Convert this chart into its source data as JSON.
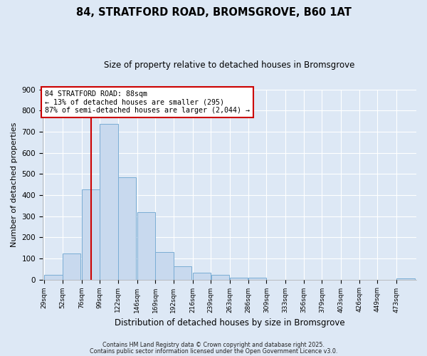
{
  "title": "84, STRATFORD ROAD, BROMSGROVE, B60 1AT",
  "subtitle": "Size of property relative to detached houses in Bromsgrove",
  "xlabel": "Distribution of detached houses by size in Bromsgrove",
  "ylabel": "Number of detached properties",
  "bar_color": "#c8d9ee",
  "bar_edge_color": "#7aadd4",
  "background_color": "#dde8f5",
  "grid_color": "#ffffff",
  "vline_x": 88,
  "vline_color": "#cc0000",
  "annotation_text": "84 STRATFORD ROAD: 88sqm\n← 13% of detached houses are smaller (295)\n87% of semi-detached houses are larger (2,044) →",
  "annotation_box_facecolor": "#ffffff",
  "annotation_box_edgecolor": "#cc0000",
  "bins_left_edges": [
    29,
    52,
    76,
    99,
    122,
    146,
    169,
    192,
    216,
    239,
    263,
    286,
    309,
    333,
    356,
    379,
    403,
    426,
    449,
    473
  ],
  "bin_width": 23,
  "bin_heights": [
    22,
    122,
    425,
    737,
    485,
    318,
    131,
    62,
    32,
    22,
    8,
    7,
    0,
    0,
    0,
    0,
    0,
    0,
    0,
    5
  ],
  "ylim": [
    0,
    900
  ],
  "yticks": [
    0,
    100,
    200,
    300,
    400,
    500,
    600,
    700,
    800,
    900
  ],
  "footer_line1": "Contains HM Land Registry data © Crown copyright and database right 2025.",
  "footer_line2": "Contains public sector information licensed under the Open Government Licence v3.0.",
  "figsize": [
    6.0,
    5.0
  ],
  "dpi": 100
}
